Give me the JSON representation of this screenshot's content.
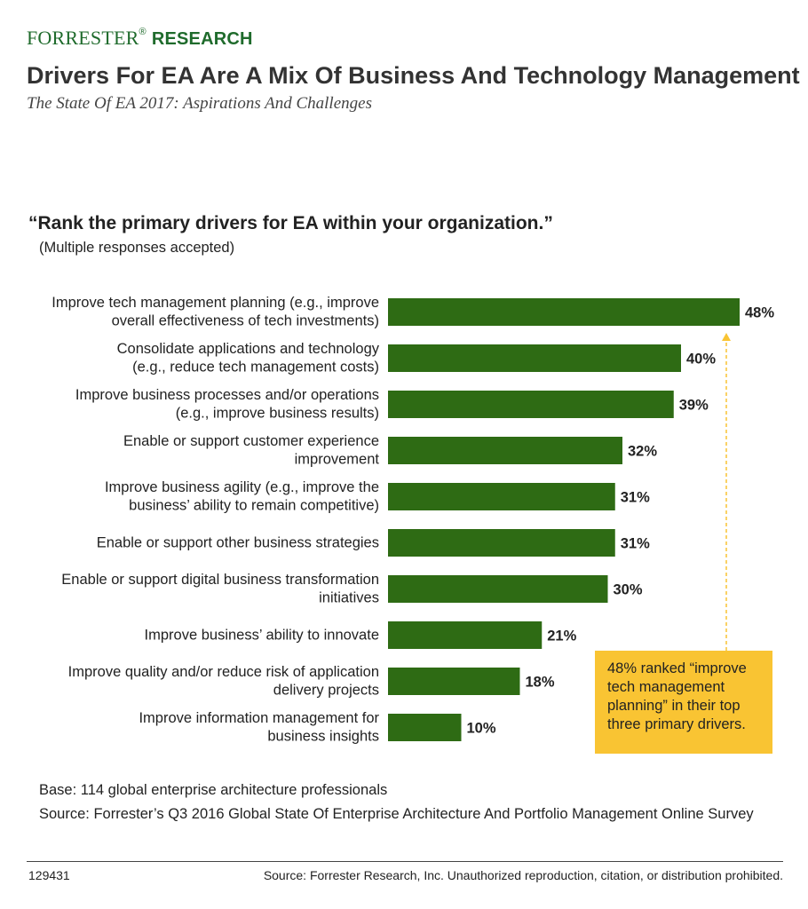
{
  "header": {
    "logo_brand": "FORRESTER",
    "logo_reg": "®",
    "logo_sub": "RESEARCH",
    "title": "Drivers For EA Are A Mix Of Business And Technology Management",
    "subtitle": "The State Of EA 2017: Aspirations And Challenges"
  },
  "question": "“Rank the primary drivers for EA within your organization.”",
  "question_note": "(Multiple responses accepted)",
  "callout": "48% ranked “improve tech management planning” in their top three primary drivers.",
  "base": "Base: 114 global enterprise architecture professionals",
  "source": "Source: Forrester’s Q3 2016 Global State Of Enterprise Architecture And Portfolio Management Online Survey",
  "footer": {
    "id": "129431",
    "source": "Source: Forrester Research, Inc. Unauthorized reproduction, citation, or distribution prohibited."
  },
  "colors": {
    "bar": "#2e6b14",
    "brand": "#1f6b2c",
    "callout": "#f9c433"
  },
  "chart_data": {
    "type": "bar",
    "orientation": "horizontal",
    "title": "“Rank the primary drivers for EA within your organization.”",
    "categories": [
      [
        "Improve tech management planning (e.g., improve",
        "overall effectiveness of tech investments)"
      ],
      [
        "Consolidate applications and technology",
        "(e.g., reduce tech management costs)"
      ],
      [
        "Improve business processes and/or operations",
        "(e.g., improve business results)"
      ],
      [
        "Enable or support customer experience",
        "improvement"
      ],
      [
        "Improve business agility (e.g., improve the",
        "business’ ability to remain competitive)"
      ],
      [
        "Enable or support other business strategies"
      ],
      [
        "Enable or support digital business transformation",
        "initiatives"
      ],
      [
        "Improve business’ ability to innovate"
      ],
      [
        "Improve quality and/or reduce risk of application",
        "delivery projects"
      ],
      [
        "Improve information management for",
        "business insights"
      ]
    ],
    "values": [
      48,
      40,
      39,
      32,
      31,
      31,
      30,
      21,
      18,
      10
    ],
    "value_labels": [
      "48%",
      "40%",
      "39%",
      "32%",
      "31%",
      "31%",
      "30%",
      "21%",
      "18%",
      "10%"
    ],
    "unit": "%",
    "xlim": [
      0,
      48
    ],
    "grid": false,
    "legend": false
  }
}
